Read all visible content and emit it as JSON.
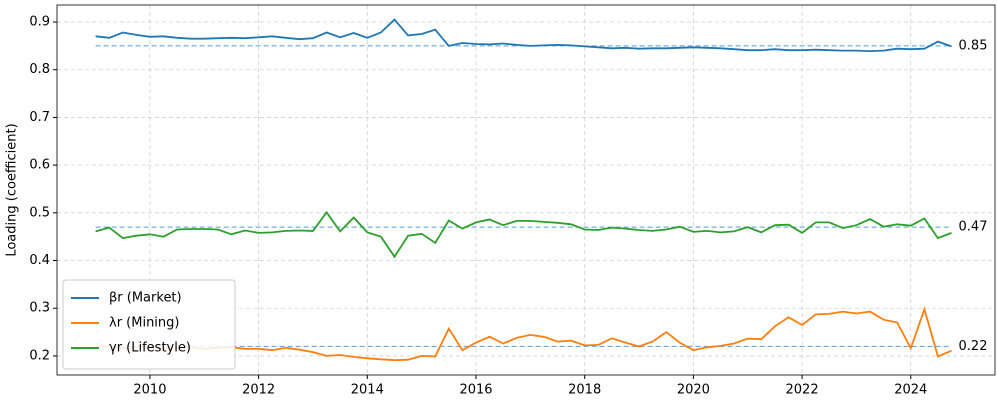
{
  "chart_data": {
    "type": "line",
    "y_label": "Loading (coefficient)",
    "x": [
      2009,
      2009.25,
      2009.5,
      2009.75,
      2010,
      2010.25,
      2010.5,
      2010.75,
      2011,
      2011.25,
      2011.5,
      2011.75,
      2012,
      2012.25,
      2012.5,
      2012.75,
      2013,
      2013.25,
      2013.5,
      2013.75,
      2014,
      2014.25,
      2014.5,
      2014.75,
      2015,
      2015.25,
      2015.5,
      2015.75,
      2016,
      2016.25,
      2016.5,
      2016.75,
      2017,
      2017.25,
      2017.5,
      2017.75,
      2018,
      2018.25,
      2018.5,
      2018.75,
      2019,
      2019.25,
      2019.5,
      2019.75,
      2020,
      2020.25,
      2020.5,
      2020.75,
      2021,
      2021.25,
      2021.5,
      2021.75,
      2022,
      2022.25,
      2022.5,
      2022.75,
      2023,
      2023.25,
      2023.5,
      2023.75,
      2024,
      2024.25,
      2024.5,
      2024.75
    ],
    "series": [
      {
        "name": "βr (Market)",
        "color": "#1f77b4",
        "reference": 0.85,
        "reference_label": "0.85",
        "values": [
          0.87,
          0.867,
          0.878,
          0.873,
          0.869,
          0.87,
          0.867,
          0.865,
          0.865,
          0.866,
          0.867,
          0.866,
          0.868,
          0.87,
          0.867,
          0.864,
          0.866,
          0.878,
          0.868,
          0.877,
          0.867,
          0.878,
          0.905,
          0.872,
          0.875,
          0.884,
          0.85,
          0.856,
          0.854,
          0.853,
          0.855,
          0.852,
          0.85,
          0.851,
          0.852,
          0.851,
          0.849,
          0.847,
          0.845,
          0.846,
          0.844,
          0.845,
          0.845,
          0.846,
          0.847,
          0.846,
          0.845,
          0.843,
          0.841,
          0.841,
          0.843,
          0.841,
          0.841,
          0.842,
          0.841,
          0.84,
          0.84,
          0.839,
          0.84,
          0.844,
          0.843,
          0.844,
          0.859,
          0.849
        ]
      },
      {
        "name": "λr (Mining)",
        "color": "#ff7f0e",
        "reference": 0.22,
        "reference_label": "0.22",
        "values": [
          0.22,
          0.22,
          0.215,
          0.22,
          0.218,
          0.215,
          0.217,
          0.218,
          0.215,
          0.217,
          0.218,
          0.215,
          0.215,
          0.212,
          0.217,
          0.213,
          0.208,
          0.2,
          0.202,
          0.198,
          0.195,
          0.193,
          0.191,
          0.192,
          0.2,
          0.199,
          0.257,
          0.212,
          0.228,
          0.24,
          0.226,
          0.238,
          0.244,
          0.24,
          0.23,
          0.232,
          0.222,
          0.223,
          0.237,
          0.228,
          0.22,
          0.23,
          0.25,
          0.228,
          0.212,
          0.218,
          0.221,
          0.226,
          0.236,
          0.235,
          0.262,
          0.281,
          0.265,
          0.287,
          0.288,
          0.293,
          0.289,
          0.293,
          0.276,
          0.27,
          0.216,
          0.298,
          0.199,
          0.211
        ]
      },
      {
        "name": "γr (Lifestyle)",
        "color": "#2ca02c",
        "reference": 0.47,
        "reference_label": "0.47",
        "values": [
          0.461,
          0.469,
          0.447,
          0.452,
          0.455,
          0.45,
          0.465,
          0.466,
          0.466,
          0.465,
          0.455,
          0.463,
          0.458,
          0.459,
          0.462,
          0.463,
          0.462,
          0.501,
          0.461,
          0.49,
          0.459,
          0.45,
          0.408,
          0.452,
          0.456,
          0.437,
          0.484,
          0.467,
          0.48,
          0.486,
          0.474,
          0.483,
          0.483,
          0.481,
          0.479,
          0.476,
          0.465,
          0.464,
          0.469,
          0.467,
          0.464,
          0.462,
          0.465,
          0.471,
          0.46,
          0.462,
          0.459,
          0.461,
          0.47,
          0.459,
          0.474,
          0.475,
          0.458,
          0.48,
          0.48,
          0.468,
          0.474,
          0.487,
          0.471,
          0.476,
          0.473,
          0.488,
          0.447,
          0.458
        ]
      }
    ],
    "xlim": [
      2008.29,
      2025.55
    ],
    "xticks": [
      2010,
      2012,
      2014,
      2016,
      2018,
      2020,
      2022,
      2024
    ],
    "ylim": [
      0.16,
      0.9357
    ],
    "yticks": [
      0.2,
      0.3,
      0.4,
      0.5,
      0.6,
      0.7,
      0.8,
      0.9
    ],
    "grid": true,
    "legend": "lower-left"
  }
}
